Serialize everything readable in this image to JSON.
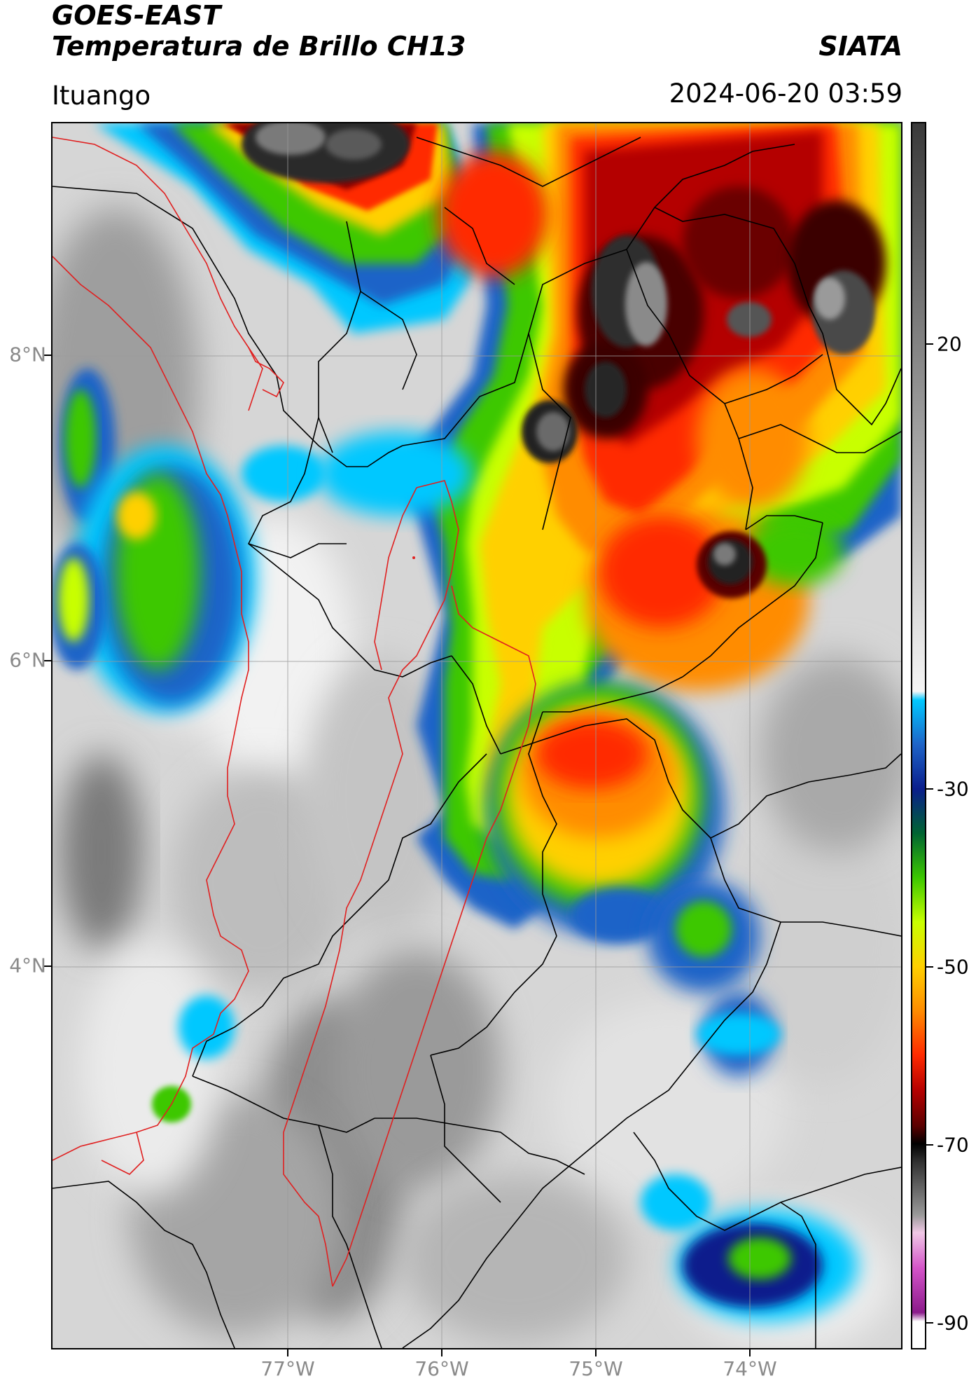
{
  "header": {
    "satellite": "GOES-EAST",
    "product": "Temperatura de Brillo CH13",
    "organization": "SIATA",
    "location": "Ituango",
    "timestamp": "2024-06-20 03:59"
  },
  "map": {
    "lat_labels": [
      "8°N",
      "6°N",
      "4°N"
    ],
    "lon_labels": [
      "77°W",
      "76°W",
      "75°W",
      "74°W"
    ],
    "lat_values": [
      8,
      6,
      4
    ],
    "lon_values": [
      -77,
      -76,
      -75,
      -74
    ],
    "extent": {
      "lon_min": -78.55,
      "lon_max": -73.0,
      "lat_min": 1.6,
      "lat_max": 9.55
    }
  },
  "colorbar": {
    "ticks": [
      "20",
      "-30",
      "-50",
      "-70",
      "-90"
    ],
    "tick_values": [
      20,
      -30,
      -50,
      -70,
      -90
    ],
    "range": [
      -93,
      45
    ],
    "stops": [
      {
        "value": -93,
        "color": "#ffffff"
      },
      {
        "value": -90,
        "color": "#ffffff"
      },
      {
        "value": -89,
        "color": "#8b1a8b"
      },
      {
        "value": -84,
        "color": "#d454c8"
      },
      {
        "value": -80,
        "color": "#f0c8e6"
      },
      {
        "value": -78,
        "color": "#9a9a9a"
      },
      {
        "value": -72,
        "color": "#303030"
      },
      {
        "value": -70,
        "color": "#000000"
      },
      {
        "value": -68,
        "color": "#5a0000"
      },
      {
        "value": -64,
        "color": "#b40000"
      },
      {
        "value": -60,
        "color": "#ff2a00"
      },
      {
        "value": -55,
        "color": "#ff8c00"
      },
      {
        "value": -50,
        "color": "#ffd000"
      },
      {
        "value": -45,
        "color": "#c8ff00"
      },
      {
        "value": -40,
        "color": "#3cc800"
      },
      {
        "value": -35,
        "color": "#006432"
      },
      {
        "value": -30,
        "color": "#0a1e8c"
      },
      {
        "value": -25,
        "color": "#1e64c8"
      },
      {
        "value": -20,
        "color": "#00c8ff"
      },
      {
        "value": -19,
        "color": "#f5f5f5"
      },
      {
        "value": 45,
        "color": "#3a3a3a"
      }
    ]
  }
}
